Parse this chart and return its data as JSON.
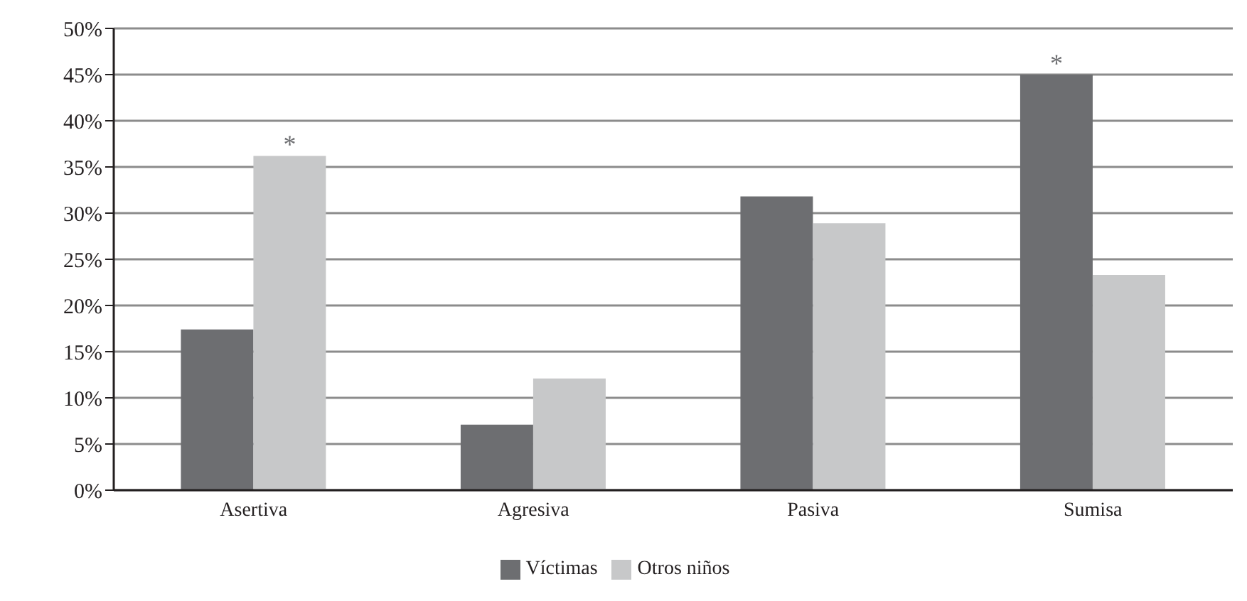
{
  "chart_data": {
    "type": "bar",
    "categories": [
      "Asertiva",
      "Agresiva",
      "Pasiva",
      "Sumisa"
    ],
    "series": [
      {
        "name": "Víctimas",
        "color": "#6d6e71",
        "values": [
          17.4,
          7.1,
          31.8,
          45
        ]
      },
      {
        "name": "Otros niños",
        "color": "#c7c8c9",
        "values": [
          36.2,
          12.1,
          28.9,
          23.3
        ]
      }
    ],
    "ylim": [
      0,
      50
    ],
    "yticks": [
      {
        "value": 0,
        "label": "0%"
      },
      {
        "value": 5,
        "label": "5%"
      },
      {
        "value": 10,
        "label": "10%"
      },
      {
        "value": 15,
        "label": "15%"
      },
      {
        "value": 20,
        "label": "20%"
      },
      {
        "value": 25,
        "label": "25%"
      },
      {
        "value": 30,
        "label": "30%"
      },
      {
        "value": 35,
        "label": "35%"
      },
      {
        "value": 40,
        "label": "40%"
      },
      {
        "value": 45,
        "label": "45%"
      },
      {
        "value": 50,
        "label": "50%"
      }
    ],
    "grid": "y",
    "legend": "bottom",
    "annotations": [
      {
        "text": "*",
        "x": "Asertiva",
        "y": 36.2
      },
      {
        "text": "*",
        "x": "Sumisa",
        "y": 45
      }
    ]
  }
}
